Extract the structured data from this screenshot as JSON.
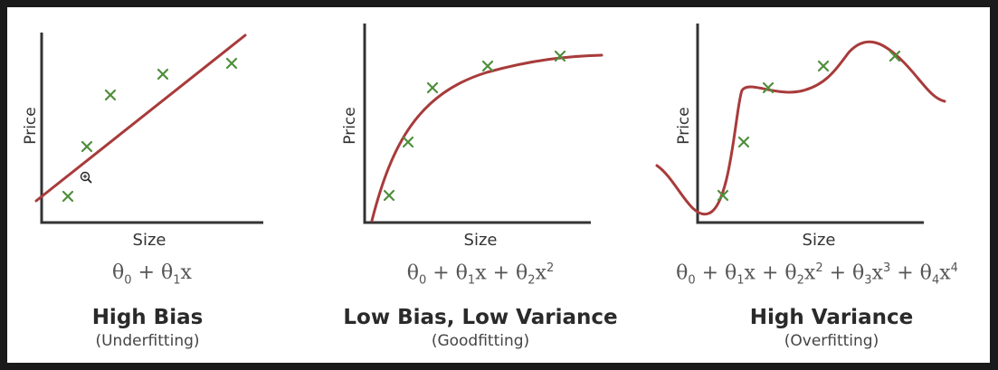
{
  "panels": [
    {
      "id": "high-bias",
      "xlabel": "Size",
      "ylabel": "Price",
      "formula_html": "θ<sub>0</sub> + θ<sub>1</sub>x",
      "title": "High Bias",
      "subtitle": "(Underfitting)"
    },
    {
      "id": "good-fit",
      "xlabel": "Size",
      "ylabel": "Price",
      "formula_html": "θ<sub>0</sub> + θ<sub>1</sub>x + θ<sub>2</sub>x<sup>2</sup>",
      "title": "Low Bias, Low Variance",
      "subtitle": "(Goodfitting)"
    },
    {
      "id": "high-variance",
      "xlabel": "Size",
      "ylabel": "Price",
      "formula_html": "θ<sub>0</sub> + θ<sub>1</sub>x + θ<sub>2</sub>x<sup>2</sup> + θ<sub>3</sub>x<sup>3</sup> + θ<sub>4</sub>x<sup>4</sup>",
      "title": "High Variance",
      "subtitle": "(Overfitting)"
    }
  ],
  "colors": {
    "curve": "#a83b3b",
    "points": "#4e8f3a",
    "axis": "#333333"
  },
  "cursor_icon": "zoom-in-icon"
}
